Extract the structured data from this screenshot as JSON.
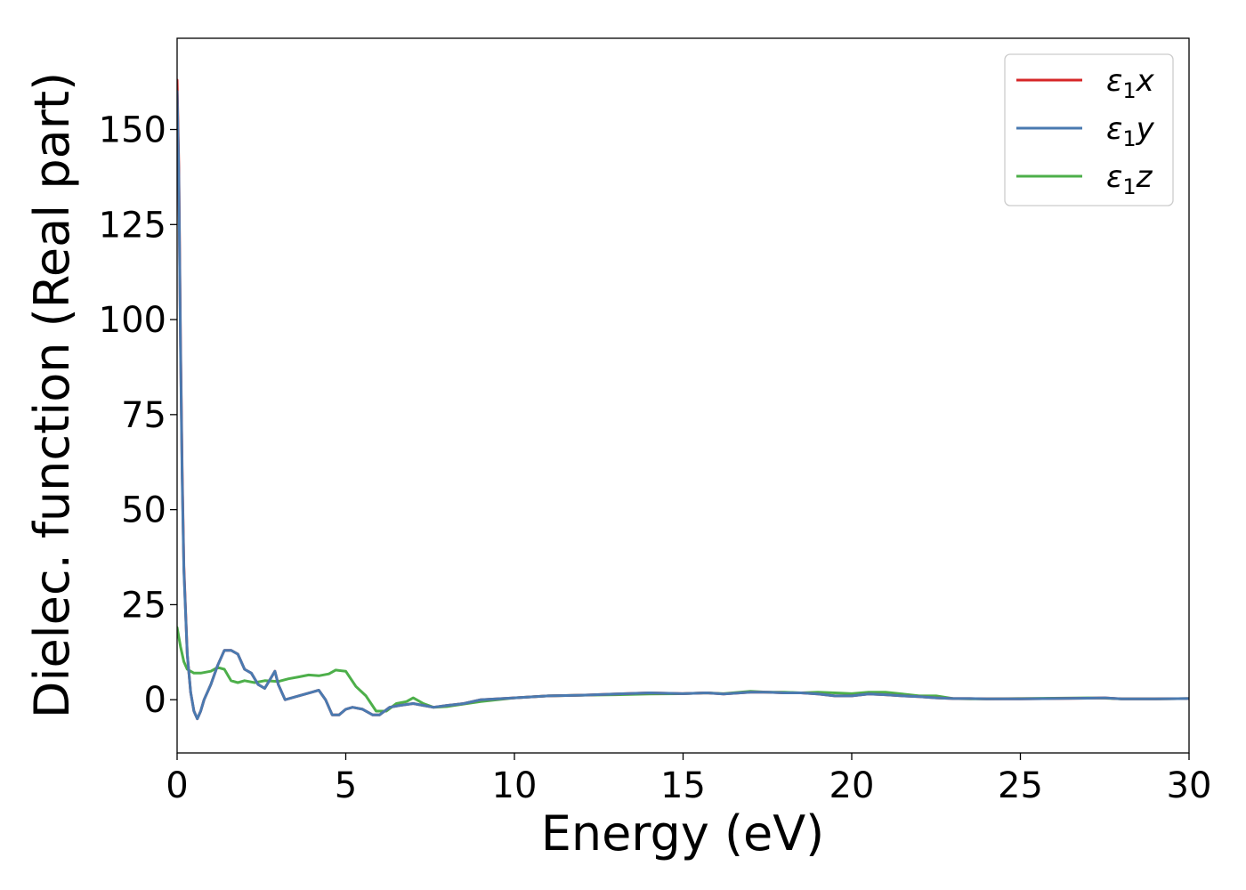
{
  "chart_data": {
    "type": "line",
    "xlabel": "Energy (eV)",
    "ylabel": "Dielec. function (Real part)",
    "xlim": [
      0,
      30
    ],
    "ylim": [
      -14,
      174
    ],
    "xticks": [
      0,
      5,
      10,
      15,
      20,
      25,
      30
    ],
    "yticks": [
      0,
      25,
      50,
      75,
      100,
      125,
      150
    ],
    "grid": false,
    "legend_position": "top-right",
    "series": [
      {
        "name": "ε₁x",
        "legend_main": "ε",
        "legend_sub": "1",
        "legend_suffix": "x",
        "color": "#d62728",
        "x": [
          0,
          0.05,
          0.1,
          0.15,
          0.2,
          0.3,
          0.4,
          0.5,
          0.6,
          0.7,
          0.8,
          1.0,
          1.2,
          1.4,
          1.6,
          1.8,
          2.0,
          2.2,
          2.4,
          2.6,
          2.8,
          2.9,
          3.0,
          3.2,
          3.4,
          3.6,
          3.8,
          4.0,
          4.2,
          4.4,
          4.6,
          4.8,
          5.0,
          5.2,
          5.5,
          5.8,
          6.0,
          6.3,
          6.6,
          7.0,
          7.3,
          7.6,
          8.0,
          8.5,
          9.0,
          10.0,
          11.0,
          12.0,
          13.0,
          14.0,
          15.0,
          15.7,
          16.2,
          17.0,
          17.5,
          18.0,
          18.5,
          19.0,
          19.5,
          20.0,
          20.5,
          21.0,
          21.5,
          22.0,
          22.5,
          23.0,
          23.5,
          24.0,
          25.0,
          26.0,
          27.0,
          27.5,
          28.0,
          29.0,
          30.0
        ],
        "values": [
          163,
          140,
          95,
          60,
          35,
          12,
          2,
          -3,
          -5,
          -3,
          0,
          4,
          9,
          13,
          13,
          12,
          8,
          7,
          4,
          3,
          6,
          7.5,
          4,
          0,
          0.5,
          1,
          1.5,
          2,
          2.5,
          0,
          -4,
          -4,
          -2.5,
          -2,
          -2.5,
          -4,
          -4,
          -2,
          -1.5,
          -1,
          -1.5,
          -2,
          -1.5,
          -1,
          0,
          0.5,
          1,
          1.2,
          1.5,
          1.8,
          1.6,
          1.8,
          1.5,
          2,
          2,
          1.8,
          1.8,
          1.5,
          1,
          1,
          1.5,
          1.3,
          1,
          0.8,
          0.5,
          0.3,
          0.3,
          0.2,
          0.2,
          0.3,
          0.4,
          0.5,
          0.2,
          0.2,
          0.3
        ]
      },
      {
        "name": "ε₁y",
        "legend_main": "ε",
        "legend_sub": "1",
        "legend_suffix": "y",
        "color": "#4a7ab0",
        "x": [
          0,
          0.05,
          0.1,
          0.15,
          0.2,
          0.3,
          0.4,
          0.5,
          0.6,
          0.7,
          0.8,
          1.0,
          1.2,
          1.4,
          1.6,
          1.8,
          2.0,
          2.2,
          2.4,
          2.6,
          2.8,
          2.9,
          3.0,
          3.2,
          3.4,
          3.6,
          3.8,
          4.0,
          4.2,
          4.4,
          4.6,
          4.8,
          5.0,
          5.2,
          5.5,
          5.8,
          6.0,
          6.3,
          6.6,
          7.0,
          7.3,
          7.6,
          8.0,
          8.5,
          9.0,
          10.0,
          11.0,
          12.0,
          13.0,
          14.0,
          15.0,
          15.7,
          16.2,
          17.0,
          17.5,
          18.0,
          18.5,
          19.0,
          19.5,
          20.0,
          20.5,
          21.0,
          21.5,
          22.0,
          22.5,
          23.0,
          23.5,
          24.0,
          25.0,
          26.0,
          27.0,
          27.5,
          28.0,
          29.0,
          30.0
        ],
        "values": [
          160,
          138,
          93,
          58,
          34,
          12,
          2,
          -3,
          -5,
          -3,
          0,
          4,
          9,
          13,
          13,
          12,
          8,
          7,
          4,
          3,
          6,
          7.5,
          4,
          0,
          0.5,
          1,
          1.5,
          2,
          2.5,
          0,
          -4,
          -4,
          -2.5,
          -2,
          -2.5,
          -4,
          -4,
          -2,
          -1.5,
          -1,
          -1.5,
          -2,
          -1.5,
          -1,
          0,
          0.5,
          1,
          1.2,
          1.5,
          1.8,
          1.6,
          1.8,
          1.5,
          2,
          2,
          1.8,
          1.8,
          1.5,
          1,
          1,
          1.5,
          1.3,
          1,
          0.8,
          0.5,
          0.3,
          0.3,
          0.2,
          0.2,
          0.3,
          0.4,
          0.5,
          0.2,
          0.2,
          0.3
        ]
      },
      {
        "name": "ε₁z",
        "legend_main": "ε",
        "legend_sub": "1",
        "legend_suffix": "z",
        "color": "#4daf4a",
        "x": [
          0,
          0.1,
          0.2,
          0.3,
          0.5,
          0.7,
          1.0,
          1.2,
          1.4,
          1.6,
          1.8,
          2.0,
          2.3,
          2.6,
          3.0,
          3.3,
          3.6,
          3.9,
          4.2,
          4.5,
          4.7,
          5.0,
          5.3,
          5.6,
          5.9,
          6.2,
          6.5,
          6.8,
          7.0,
          7.3,
          7.6,
          8.0,
          9.0,
          10.0,
          11.0,
          12.0,
          13.0,
          14.0,
          15.0,
          15.7,
          16.2,
          17.0,
          17.5,
          18.0,
          18.5,
          19.0,
          19.5,
          20.0,
          20.5,
          21.0,
          21.5,
          22.0,
          22.5,
          23.0,
          23.5,
          24.0,
          25.0,
          26.0,
          27.0,
          27.5,
          28.0,
          29.0,
          30.0
        ],
        "values": [
          19,
          14,
          10,
          8,
          7,
          7,
          7.5,
          8.5,
          8,
          5,
          4.5,
          5,
          4.5,
          5,
          4.8,
          5.5,
          6,
          6.5,
          6.3,
          6.8,
          7.8,
          7.5,
          3.5,
          1,
          -3,
          -3,
          -1,
          -0.5,
          0.5,
          -1,
          -2,
          -1.8,
          -0.5,
          0.5,
          1,
          1.2,
          1.3,
          1.5,
          1.6,
          1.8,
          1.6,
          2.2,
          2,
          2,
          1.8,
          2,
          1.8,
          1.6,
          2,
          2,
          1.5,
          1,
          1,
          0.3,
          0.2,
          0.2,
          0.3,
          0.4,
          0.5,
          0.4,
          0.2,
          0.2,
          0.3
        ]
      }
    ]
  }
}
